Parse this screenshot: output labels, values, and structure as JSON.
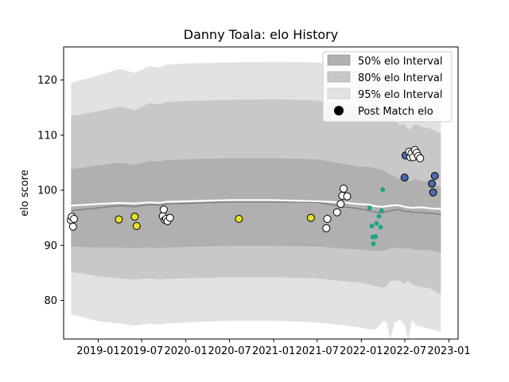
{
  "chart_data": {
    "type": "scatter",
    "title": "Danny Toala: elo History",
    "xlabel": "",
    "ylabel": "elo score",
    "xlim": [
      "2018-08-10",
      "2023-02-08"
    ],
    "ylim": [
      73.0,
      126.0
    ],
    "x_ticks": [
      "2019-01",
      "2019-07",
      "2020-01",
      "2020-07",
      "2021-01",
      "2021-07",
      "2022-01",
      "2022-07",
      "2023-01"
    ],
    "y_ticks": [
      80,
      90,
      100,
      110,
      120
    ],
    "grid": false,
    "legend_position": "top-right",
    "legend": [
      {
        "label": "50% elo Interval",
        "color": "#b0b0b0",
        "kind": "patch"
      },
      {
        "label": "80% elo Interval",
        "color": "#c8c8c8",
        "kind": "patch"
      },
      {
        "label": "95% elo Interval",
        "color": "#e2e2e2",
        "kind": "patch"
      },
      {
        "label": "Post Match elo",
        "color": "#000000",
        "kind": "marker"
      }
    ],
    "bands": {
      "dates": [
        "2018-09-10",
        "2019-01-01",
        "2019-04-01",
        "2019-06-01",
        "2019-08-01",
        "2019-09-15",
        "2019-10-10",
        "2020-01-01",
        "2020-07-01",
        "2021-01-01",
        "2021-07-01",
        "2021-10-15",
        "2021-12-15",
        "2022-02-01",
        "2022-03-01",
        "2022-04-01",
        "2022-04-15",
        "2022-05-01",
        "2022-05-20",
        "2022-06-10",
        "2022-07-01",
        "2022-07-15",
        "2022-08-01",
        "2022-08-15",
        "2022-09-10",
        "2022-10-15",
        "2022-11-15",
        "2022-11-28"
      ],
      "upper95": [
        119.5,
        120.8,
        122.0,
        121.3,
        122.5,
        122.3,
        122.8,
        123.0,
        123.2,
        123.3,
        123.2,
        122.5,
        121.8,
        122.0,
        121.8,
        121.5,
        121.0,
        120.2,
        119.5,
        118.5,
        119.0,
        117.5,
        118.5,
        119.0,
        118.5,
        118.2,
        116.5,
        116.8
      ],
      "upper80": [
        113.5,
        114.3,
        115.2,
        114.5,
        115.8,
        115.6,
        116.0,
        116.2,
        116.4,
        116.5,
        116.3,
        115.5,
        115.0,
        115.0,
        114.8,
        114.5,
        114.0,
        113.3,
        112.8,
        111.8,
        112.0,
        111.0,
        111.5,
        112.0,
        111.5,
        111.2,
        110.5,
        110.3
      ],
      "upper50": [
        103.8,
        104.5,
        105.0,
        104.6,
        105.3,
        105.2,
        105.5,
        105.6,
        105.8,
        105.8,
        105.6,
        104.8,
        104.3,
        104.2,
        104.0,
        103.7,
        103.3,
        102.8,
        102.5,
        102.0,
        102.0,
        101.6,
        101.8,
        102.0,
        101.7,
        101.4,
        100.8,
        100.6
      ],
      "mean": [
        96.3,
        96.8,
        97.2,
        97.0,
        97.4,
        97.3,
        97.5,
        97.6,
        97.9,
        97.9,
        97.8,
        97.0,
        96.7,
        96.3,
        96.0,
        95.9,
        96.1,
        96.3,
        96.4,
        96.5,
        96.1,
        96.2,
        96.0,
        96.0,
        95.9,
        95.8,
        95.7,
        95.5
      ],
      "lower50": [
        89.8,
        89.6,
        89.6,
        89.5,
        89.6,
        89.5,
        89.6,
        89.7,
        89.9,
        89.9,
        89.8,
        89.4,
        89.3,
        89.1,
        89.0,
        89.0,
        89.2,
        89.5,
        89.5,
        89.6,
        89.3,
        89.5,
        89.3,
        89.2,
        89.2,
        89.1,
        88.8,
        88.6
      ],
      "lower80": [
        85.2,
        84.4,
        84.0,
        83.8,
        84.0,
        83.8,
        83.9,
        84.0,
        84.2,
        84.2,
        84.0,
        83.5,
        83.3,
        82.9,
        82.6,
        82.3,
        82.6,
        83.5,
        83.6,
        83.6,
        83.0,
        83.5,
        83.0,
        82.7,
        82.4,
        82.2,
        81.3,
        81.2
      ],
      "lower95": [
        77.5,
        76.2,
        75.8,
        75.4,
        75.8,
        75.6,
        75.8,
        76.0,
        76.3,
        76.3,
        76.0,
        75.5,
        75.2,
        74.8,
        74.7,
        76.2,
        76.2,
        72.9,
        76.0,
        76.5,
        75.5,
        72.9,
        76.5,
        75.5,
        75.2,
        74.8,
        74.5,
        74.2
      ]
    },
    "series_white_line": {
      "dates": [
        "2018-09-10",
        "2019-01-01",
        "2019-04-01",
        "2019-06-01",
        "2019-08-01",
        "2019-09-15",
        "2019-10-10",
        "2020-01-01",
        "2020-07-01",
        "2021-01-01",
        "2021-07-01",
        "2021-10-15",
        "2021-12-15",
        "2022-02-01",
        "2022-03-01",
        "2022-04-01",
        "2022-05-01",
        "2022-06-01",
        "2022-07-01",
        "2022-08-01",
        "2022-09-10",
        "2022-10-15",
        "2022-11-28"
      ],
      "values": [
        97.2,
        97.5,
        97.7,
        97.6,
        97.8,
        97.7,
        97.9,
        98.0,
        98.2,
        98.2,
        98.0,
        97.8,
        97.5,
        97.4,
        97.1,
        97.0,
        97.2,
        97.3,
        97.0,
        96.8,
        96.9,
        96.7,
        96.6
      ]
    },
    "points": [
      {
        "date": "2018-09-09",
        "elo": 94.6,
        "color": "#ffffff"
      },
      {
        "date": "2018-09-13",
        "elo": 95.2,
        "color": "#ffffff"
      },
      {
        "date": "2018-09-18",
        "elo": 93.4,
        "color": "#ffffff"
      },
      {
        "date": "2018-09-22",
        "elo": 94.8,
        "color": "#ffffff"
      },
      {
        "date": "2019-03-28",
        "elo": 94.7,
        "color": "#e8e02a"
      },
      {
        "date": "2019-06-02",
        "elo": 95.2,
        "color": "#e8e02a"
      },
      {
        "date": "2019-06-10",
        "elo": 93.5,
        "color": "#e8e02a"
      },
      {
        "date": "2019-09-27",
        "elo": 95.3,
        "color": "#ffffff"
      },
      {
        "date": "2019-10-01",
        "elo": 96.5,
        "color": "#ffffff"
      },
      {
        "date": "2019-10-06",
        "elo": 94.6,
        "color": "#ffffff"
      },
      {
        "date": "2019-10-11",
        "elo": 94.8,
        "color": "#ffffff"
      },
      {
        "date": "2019-10-17",
        "elo": 94.4,
        "color": "#ffffff"
      },
      {
        "date": "2019-10-27",
        "elo": 95.0,
        "color": "#ffffff"
      },
      {
        "date": "2020-08-09",
        "elo": 94.8,
        "color": "#e8e02a"
      },
      {
        "date": "2021-06-05",
        "elo": 95.0,
        "color": "#e8e02a"
      },
      {
        "date": "2021-08-08",
        "elo": 93.1,
        "color": "#ffffff"
      },
      {
        "date": "2021-08-12",
        "elo": 94.8,
        "color": "#ffffff"
      },
      {
        "date": "2021-09-22",
        "elo": 96.0,
        "color": "#ffffff"
      },
      {
        "date": "2021-10-07",
        "elo": 97.5,
        "color": "#ffffff"
      },
      {
        "date": "2021-10-14",
        "elo": 99.0,
        "color": "#ffffff"
      },
      {
        "date": "2021-10-19",
        "elo": 100.3,
        "color": "#ffffff"
      },
      {
        "date": "2021-11-03",
        "elo": 98.9,
        "color": "#ffffff"
      },
      {
        "date": "2022-02-04",
        "elo": 96.8,
        "color": "#20a486",
        "size": "small"
      },
      {
        "date": "2022-02-14",
        "elo": 93.5,
        "color": "#20a486",
        "size": "small"
      },
      {
        "date": "2022-02-18",
        "elo": 91.5,
        "color": "#20a486",
        "size": "small"
      },
      {
        "date": "2022-02-20",
        "elo": 90.3,
        "color": "#20a486",
        "size": "small"
      },
      {
        "date": "2022-03-01",
        "elo": 91.6,
        "color": "#20a486",
        "size": "small"
      },
      {
        "date": "2022-03-05",
        "elo": 94.0,
        "color": "#20a486",
        "size": "small"
      },
      {
        "date": "2022-03-15",
        "elo": 95.3,
        "color": "#20a486",
        "size": "small"
      },
      {
        "date": "2022-03-22",
        "elo": 93.3,
        "color": "#20a486",
        "size": "small"
      },
      {
        "date": "2022-03-26",
        "elo": 96.3,
        "color": "#20a486",
        "size": "small"
      },
      {
        "date": "2022-03-31",
        "elo": 100.1,
        "color": "#20a486",
        "size": "small"
      },
      {
        "date": "2022-06-30",
        "elo": 102.3,
        "color": "#4a6aab"
      },
      {
        "date": "2022-07-04",
        "elo": 106.3,
        "color": "#4a6aab"
      },
      {
        "date": "2022-07-19",
        "elo": 107.0,
        "color": "#ffffff"
      },
      {
        "date": "2022-07-24",
        "elo": 106.0,
        "color": "#ffffff"
      },
      {
        "date": "2022-07-29",
        "elo": 106.7,
        "color": "#ffffff"
      },
      {
        "date": "2022-08-05",
        "elo": 106.0,
        "color": "#ffffff"
      },
      {
        "date": "2022-08-12",
        "elo": 107.3,
        "color": "#ffffff"
      },
      {
        "date": "2022-08-19",
        "elo": 106.8,
        "color": "#ffffff"
      },
      {
        "date": "2022-08-26",
        "elo": 106.2,
        "color": "#ffffff"
      },
      {
        "date": "2022-09-03",
        "elo": 105.8,
        "color": "#ffffff"
      },
      {
        "date": "2022-10-22",
        "elo": 101.2,
        "color": "#4a6aab"
      },
      {
        "date": "2022-10-27",
        "elo": 99.6,
        "color": "#4a6aab"
      },
      {
        "date": "2022-11-03",
        "elo": 102.6,
        "color": "#4a6aab"
      }
    ]
  }
}
